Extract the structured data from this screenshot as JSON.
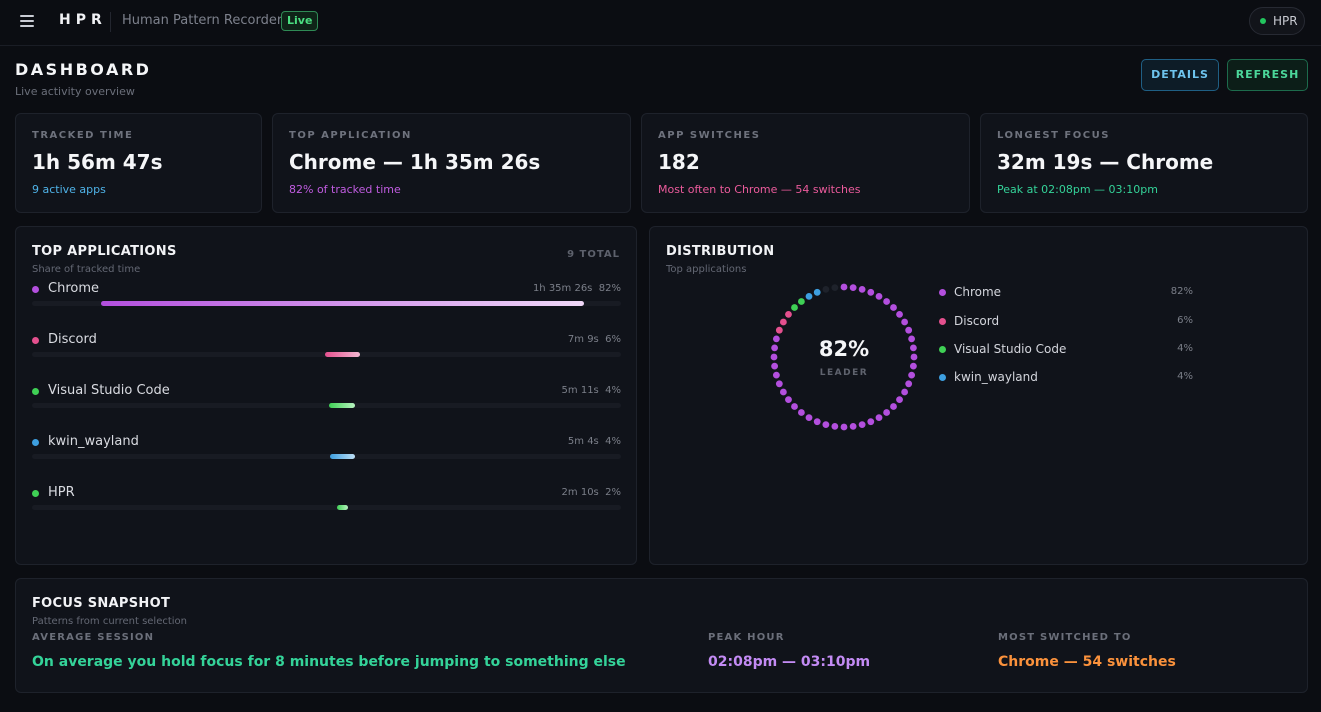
{
  "header": {
    "brand": "HPR",
    "app_name": "Human Pattern Recorder",
    "live_label": "Live",
    "user_label": "HPR"
  },
  "page": {
    "title": "DASHBOARD",
    "subtitle": "Live activity overview",
    "details_label": "DETAILS",
    "refresh_label": "REFRESH"
  },
  "stats": [
    {
      "label": "TRACKED TIME",
      "value": "1h 56m 47s",
      "sub": "9 active apps",
      "sub_color": "#4fb3e8"
    },
    {
      "label": "TOP APPLICATION",
      "value": "Chrome — 1h 35m 26s",
      "sub": "82% of tracked time",
      "sub_color": "#c05ce0"
    },
    {
      "label": "APP SWITCHES",
      "value": "182",
      "sub": "Most often to Chrome — 54 switches",
      "sub_color": "#ec5b9c"
    },
    {
      "label": "LONGEST FOCUS",
      "value": "32m 19s — Chrome",
      "sub": "Peak at 02:08pm — 03:10pm",
      "sub_color": "#34d399"
    }
  ],
  "top_apps": {
    "title": "TOP APPLICATIONS",
    "subtitle": "Share of tracked time",
    "total_label": "9 TOTAL",
    "items": [
      {
        "name": "Chrome",
        "time": "1h 35m 26s",
        "pct_label": "82%",
        "share": 0.82,
        "color": "#b34fde",
        "color_end": "#f0d8f8"
      },
      {
        "name": "Discord",
        "time": "7m 9s",
        "pct_label": "6%",
        "share": 0.06,
        "color": "#e4508e",
        "color_end": "#f4b8d2"
      },
      {
        "name": "Visual Studio Code",
        "time": "5m 11s",
        "pct_label": "4%",
        "share": 0.044,
        "color": "#3fd055",
        "color_end": "#b8f3c0"
      },
      {
        "name": "kwin_wayland",
        "time": "5m 4s",
        "pct_label": "4%",
        "share": 0.043,
        "color": "#3d9fe0",
        "color_end": "#bfe0f6"
      },
      {
        "name": "HPR",
        "time": "2m 10s",
        "pct_label": "2%",
        "share": 0.019,
        "color": "#3fd055",
        "color_end": "#b8f3c0"
      }
    ]
  },
  "distribution": {
    "title": "DISTRIBUTION",
    "subtitle": "Top applications",
    "center_value": "82%",
    "center_label": "LEADER",
    "legend": [
      {
        "name": "Chrome",
        "pct": "82%",
        "share": 0.82,
        "color": "#b34fde"
      },
      {
        "name": "Discord",
        "pct": "6%",
        "share": 0.06,
        "color": "#e4508e"
      },
      {
        "name": "Visual Studio Code",
        "pct": "4%",
        "share": 0.04,
        "color": "#3fd055"
      },
      {
        "name": "kwin_wayland",
        "pct": "4%",
        "share": 0.04,
        "color": "#3d9fe0"
      }
    ],
    "gap_color": "#1e222b"
  },
  "focus": {
    "title": "FOCUS SNAPSHOT",
    "subtitle": "Patterns from current selection",
    "average_label": "AVERAGE SESSION",
    "average_value": "On average you hold focus for 8 minutes before jumping to something else",
    "average_color": "#34d399",
    "peak_label": "PEAK HOUR",
    "peak_value": "02:08pm — 03:10pm",
    "peak_color": "#c38bf4",
    "switched_label": "MOST SWITCHED TO",
    "switched_value": "Chrome — 54 switches",
    "switched_color": "#fb923c"
  }
}
